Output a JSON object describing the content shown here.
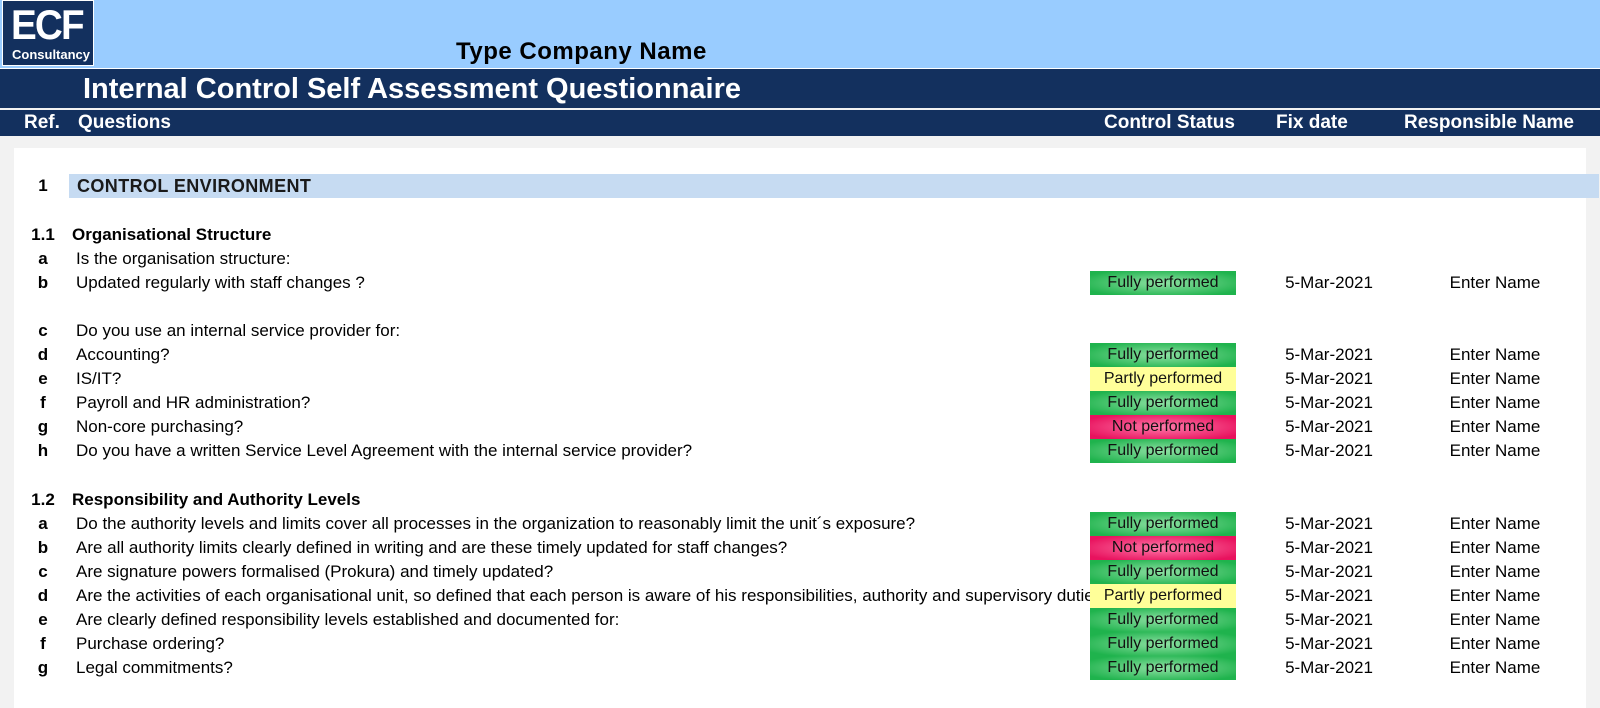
{
  "logo": {
    "main": "ECF",
    "sub": "Consultancy"
  },
  "company_name": "Type Company Name",
  "title": "Internal Control Self Assessment Questionnaire",
  "headers": {
    "ref": "Ref.",
    "questions": "Questions",
    "control_status": "Control Status",
    "fix_date": "Fix date",
    "responsible_name": "Responsible Name"
  },
  "section": {
    "number": "1",
    "title": "CONTROL ENVIRONMENT"
  },
  "subsections": [
    {
      "number": "1.1",
      "title": "Organisational Structure"
    },
    {
      "number": "1.2",
      "title": "Responsibility and Authority Levels"
    }
  ],
  "rows_1_1": [
    {
      "ref": "a",
      "question": "Is the organisation structure:",
      "status": "",
      "status_class": "",
      "date": "",
      "name": ""
    },
    {
      "ref": "b",
      "question": "Updated regularly with staff changes ?",
      "status": "Fully performed",
      "status_class": "fully",
      "date": "5-Mar-2021",
      "name": "Enter Name"
    },
    {
      "ref": "c",
      "question": "Do you use an internal service provider for:",
      "status": "",
      "status_class": "",
      "date": "",
      "name": ""
    },
    {
      "ref": "d",
      "question": "Accounting?",
      "status": "Fully performed",
      "status_class": "fully",
      "date": "5-Mar-2021",
      "name": "Enter Name"
    },
    {
      "ref": "e",
      "question": "IS/IT?",
      "status": "Partly performed",
      "status_class": "partly",
      "date": "5-Mar-2021",
      "name": "Enter Name"
    },
    {
      "ref": "f",
      "question": "Payroll and HR administration?",
      "status": "Fully performed",
      "status_class": "fully",
      "date": "5-Mar-2021",
      "name": "Enter Name"
    },
    {
      "ref": "g",
      "question": "Non-core purchasing?",
      "status": "Not performed",
      "status_class": "not",
      "date": "5-Mar-2021",
      "name": "Enter Name"
    },
    {
      "ref": "h",
      "question": "Do you have a written Service Level Agreement with the internal service provider?",
      "status": "Fully performed",
      "status_class": "fully",
      "date": "5-Mar-2021",
      "name": "Enter Name"
    }
  ],
  "rows_1_2": [
    {
      "ref": "a",
      "question": "Do the authority levels and limits cover all processes in the organization to reasonably limit the unit´s exposure?",
      "status": "Fully performed",
      "status_class": "fully",
      "date": "5-Mar-2021",
      "name": "Enter Name"
    },
    {
      "ref": "b",
      "question": "Are all authority limits clearly defined in writing and are these timely updated for staff changes?",
      "status": "Not performed",
      "status_class": "not",
      "date": "5-Mar-2021",
      "name": "Enter Name"
    },
    {
      "ref": "c",
      "question": "Are signature powers formalised (Prokura) and timely updated?",
      "status": "Fully performed",
      "status_class": "fully",
      "date": "5-Mar-2021",
      "name": "Enter Name"
    },
    {
      "ref": "d",
      "question": "Are the activities of each organisational unit, so defined that each person is aware of his responsibilities, authority and supervisory duties?",
      "status": "Partly performed",
      "status_class": "partly",
      "date": "5-Mar-2021",
      "name": "Enter Name"
    },
    {
      "ref": "e",
      "question": "Are clearly defined responsibility levels established and documented for:",
      "status": "Fully performed",
      "status_class": "fully",
      "date": "5-Mar-2021",
      "name": "Enter Name"
    },
    {
      "ref": "f",
      "question": "Purchase ordering?",
      "status": "Fully performed",
      "status_class": "fully",
      "date": "5-Mar-2021",
      "name": "Enter Name"
    },
    {
      "ref": "g",
      "question": "Legal commitments?",
      "status": "Fully performed",
      "status_class": "fully",
      "date": "5-Mar-2021",
      "name": "Enter Name"
    }
  ],
  "colors": {
    "navy": "#13305e",
    "light_blue": "#99ccff",
    "section_bar": "#c6dbf2",
    "fully": "#1fb34d",
    "partly": "#ffff99",
    "not": "#e8125e"
  }
}
